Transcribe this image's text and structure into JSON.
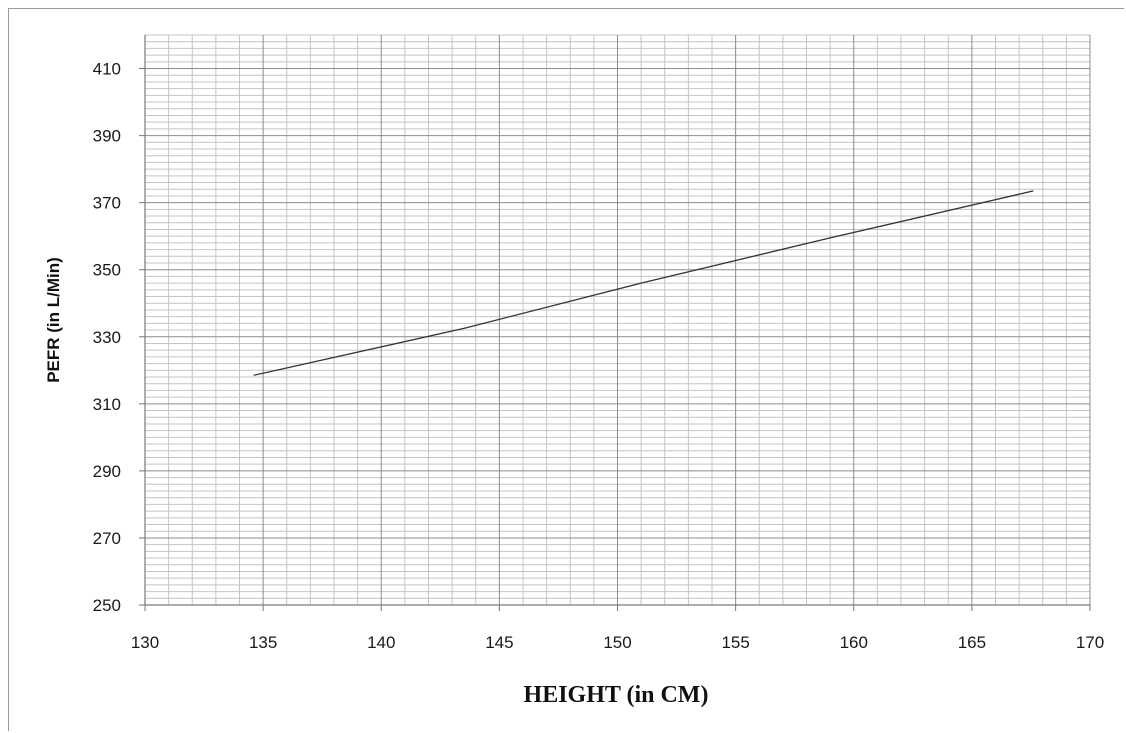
{
  "chart_data": {
    "type": "line",
    "title": "",
    "xlabel": "HEIGHT (in CM)",
    "ylabel": "PEFR (in L/Min)",
    "xlim": [
      130,
      170
    ],
    "ylim": [
      250,
      420
    ],
    "x_ticks": [
      "130",
      "135",
      "140",
      "145",
      "150",
      "155",
      "160",
      "165",
      "170"
    ],
    "y_ticks": [
      "250",
      "270",
      "290",
      "310",
      "330",
      "350",
      "370",
      "390",
      "410"
    ],
    "grid": true,
    "legend": "none",
    "series": [
      {
        "x": [
          134.6,
          143.5,
          151.0,
          159.0,
          167.6
        ],
        "values": [
          318.5,
          332.5,
          346.0,
          359.5,
          373.5
        ],
        "color": "#333333"
      }
    ]
  }
}
